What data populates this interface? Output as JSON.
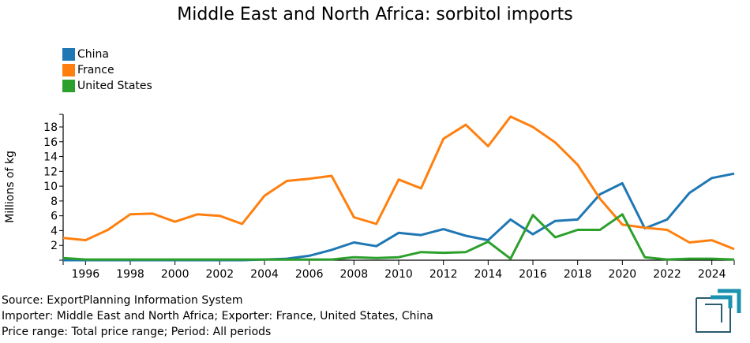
{
  "title": "Middle East and North Africa: sorbitol imports",
  "legend": [
    {
      "label": "China",
      "color": "#1f77b4"
    },
    {
      "label": "France",
      "color": "#ff7f0e"
    },
    {
      "label": "United States",
      "color": "#2ca02c"
    }
  ],
  "footer": {
    "source": "Source: ExportPlanning Information System",
    "filters": "Importer: Middle East and North Africa; Exporter: France, United States, China",
    "range": "Price range: Total price range; Period: All periods"
  },
  "chart_data": {
    "type": "line",
    "title": "Middle East and North Africa: sorbitol imports",
    "xlabel": "",
    "ylabel": "Millions of kg",
    "ylim": [
      0,
      19
    ],
    "xlim": [
      1995,
      2025
    ],
    "grid": false,
    "legend_position": "top-left",
    "x": [
      1995,
      1996,
      1997,
      1998,
      1999,
      2000,
      2001,
      2002,
      2003,
      2004,
      2005,
      2006,
      2007,
      2008,
      2009,
      2010,
      2011,
      2012,
      2013,
      2014,
      2015,
      2016,
      2017,
      2018,
      2019,
      2020,
      2021,
      2022,
      2023,
      2024,
      2025
    ],
    "x_ticks": [
      "1996",
      "1998",
      "2000",
      "2002",
      "2004",
      "2006",
      "2008",
      "2010",
      "2012",
      "2014",
      "2016",
      "2018",
      "2020",
      "2022",
      "2024"
    ],
    "y_ticks": [
      "2",
      "4",
      "6",
      "8",
      "10",
      "12",
      "14",
      "16",
      "18"
    ],
    "series": [
      {
        "name": "China",
        "color": "#1f77b4",
        "values": [
          0.0,
          0.0,
          0.0,
          0.0,
          0.0,
          0.0,
          0.0,
          0.0,
          0.0,
          0.1,
          0.2,
          0.6,
          1.4,
          2.4,
          1.9,
          3.7,
          3.4,
          4.2,
          3.3,
          2.7,
          5.5,
          3.5,
          5.3,
          5.5,
          8.9,
          10.4,
          4.3,
          5.5,
          9.1,
          11.1,
          11.7
        ]
      },
      {
        "name": "France",
        "color": "#ff7f0e",
        "values": [
          3.0,
          2.7,
          4.1,
          6.2,
          6.3,
          5.2,
          6.2,
          6.0,
          4.9,
          8.7,
          10.7,
          11.0,
          11.4,
          5.8,
          4.9,
          10.9,
          9.7,
          16.4,
          18.3,
          15.4,
          19.4,
          18.0,
          15.9,
          12.9,
          8.3,
          4.8,
          4.4,
          4.1,
          2.4,
          2.7,
          1.5
        ]
      },
      {
        "name": "United States",
        "color": "#2ca02c",
        "values": [
          0.3,
          0.1,
          0.1,
          0.1,
          0.1,
          0.1,
          0.1,
          0.1,
          0.1,
          0.1,
          0.1,
          0.1,
          0.1,
          0.4,
          0.3,
          0.4,
          1.1,
          1.0,
          1.1,
          2.5,
          0.2,
          6.1,
          3.1,
          4.1,
          4.1,
          6.2,
          0.4,
          0.1,
          0.2,
          0.2,
          0.1
        ]
      }
    ]
  }
}
